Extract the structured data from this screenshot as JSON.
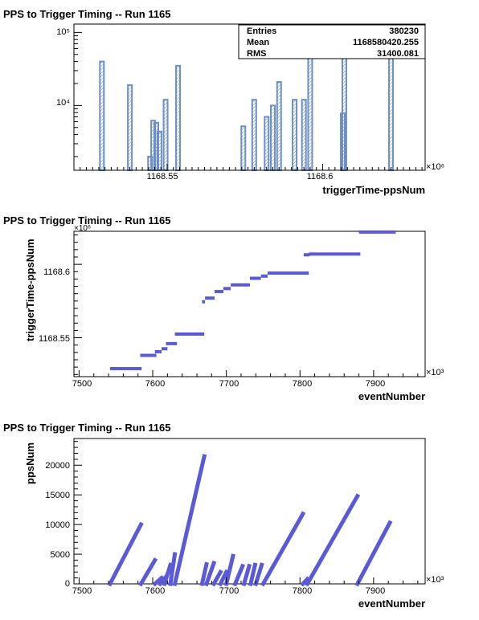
{
  "colors": {
    "hist_line": "#6d8fc4",
    "marker": "#5a5ad6",
    "axis": "#000000"
  },
  "chart_data": [
    {
      "type": "histogram",
      "title": "PPS to Trigger Timing -- Run 1165",
      "xlabel": "triggerTime-ppsNum",
      "ylabel": "",
      "x_tick_labels": [
        "1168.55",
        "1168.6"
      ],
      "x_multiplier": "×10⁶",
      "y_scale": "log",
      "y_tick_labels": [
        "10⁴",
        "10⁵"
      ],
      "xlim": [
        1168.52,
        1168.633
      ],
      "ylim": [
        1300,
        130000
      ],
      "grid": false,
      "stats": {
        "entries_label": "Entries",
        "entries": "380230",
        "mean_label": "Mean",
        "mean": "1168580420.255",
        "rms_label": "RMS",
        "rms": "31400.081"
      },
      "bins": [
        {
          "x": 1168.529,
          "y": 40000
        },
        {
          "x": 1168.538,
          "y": 19000
        },
        {
          "x": 1168.5445,
          "y": 2000
        },
        {
          "x": 1168.5455,
          "y": 6200
        },
        {
          "x": 1168.5465,
          "y": 5800
        },
        {
          "x": 1168.5475,
          "y": 4400
        },
        {
          "x": 1168.5495,
          "y": 12000
        },
        {
          "x": 1168.5535,
          "y": 35000
        },
        {
          "x": 1168.5745,
          "y": 5200
        },
        {
          "x": 1168.578,
          "y": 12000
        },
        {
          "x": 1168.582,
          "y": 7000
        },
        {
          "x": 1168.584,
          "y": 10000
        },
        {
          "x": 1168.586,
          "y": 21000
        },
        {
          "x": 1168.591,
          "y": 12000
        },
        {
          "x": 1168.594,
          "y": 12000
        },
        {
          "x": 1168.596,
          "y": 50000
        },
        {
          "x": 1168.6065,
          "y": 7800
        },
        {
          "x": 1168.607,
          "y": 60000
        },
        {
          "x": 1168.622,
          "y": 48000
        }
      ]
    },
    {
      "type": "scatter",
      "title": "PPS to Trigger Timing -- Run 1165",
      "xlabel": "eventNumber",
      "ylabel": "triggerTime-ppsNum",
      "x_tick_labels": [
        "7500",
        "7600",
        "7700",
        "7800",
        "7900"
      ],
      "x_multiplier": "×10³",
      "y_tick_labels": [
        "1168.55",
        "1168.6"
      ],
      "y_multiplier": "×10⁶",
      "xlim": [
        7493,
        7970
      ],
      "ylim": [
        1168.5235,
        1168.6225
      ],
      "grid": false,
      "segments": [
        {
          "x": [
            7542,
            7585
          ],
          "y": 1168.529
        },
        {
          "x": [
            7583,
            7605
          ],
          "y": 1168.538
        },
        {
          "x": [
            7603,
            7612
          ],
          "y": 1168.5405
        },
        {
          "x": [
            7612,
            7620
          ],
          "y": 1168.5425
        },
        {
          "x": [
            7618,
            7633
          ],
          "y": 1168.546
        },
        {
          "x": [
            7630,
            7670
          ],
          "y": 1168.5525
        },
        {
          "x": [
            7667,
            7671
          ],
          "y": 1168.5745
        },
        {
          "x": [
            7671,
            7684
          ],
          "y": 1168.577
        },
        {
          "x": [
            7684,
            7696
          ],
          "y": 1168.5815
        },
        {
          "x": [
            7696,
            7706
          ],
          "y": 1168.5835
        },
        {
          "x": [
            7706,
            7732
          ],
          "y": 1168.586
        },
        {
          "x": [
            7732,
            7747
          ],
          "y": 1168.5905
        },
        {
          "x": [
            7747,
            7756
          ],
          "y": 1168.592
        },
        {
          "x": [
            7756,
            7812
          ],
          "y": 1168.594
        },
        {
          "x": [
            7805,
            7813
          ],
          "y": 1168.6065
        },
        {
          "x": [
            7812,
            7882
          ],
          "y": 1168.607
        },
        {
          "x": [
            7880,
            7930
          ],
          "y": 1168.622
        }
      ]
    },
    {
      "type": "scatter",
      "title": "PPS to Trigger Timing -- Run 1165",
      "xlabel": "eventNumber",
      "ylabel": "ppsNum",
      "x_tick_labels": [
        "7500",
        "7600",
        "7700",
        "7800",
        "7900"
      ],
      "x_multiplier": "×10³",
      "y_tick_labels": [
        "0",
        "5000",
        "10000",
        "15000",
        "20000"
      ],
      "xlim": [
        7493,
        7970
      ],
      "ylim": [
        0,
        24500
      ],
      "grid": false,
      "segments": [
        {
          "x0": 7542,
          "y0": 0,
          "x1": 7584,
          "y1": 10000
        },
        {
          "x0": 7584,
          "y0": 0,
          "x1": 7603,
          "y1": 4000
        },
        {
          "x0": 7603,
          "y0": 0,
          "x1": 7612,
          "y1": 1000
        },
        {
          "x0": 7610,
          "y0": 0,
          "x1": 7618,
          "y1": 1200
        },
        {
          "x0": 7616,
          "y0": 0,
          "x1": 7624,
          "y1": 3200
        },
        {
          "x0": 7624,
          "y0": 0,
          "x1": 7630,
          "y1": 5000
        },
        {
          "x0": 7630,
          "y0": 0,
          "x1": 7670,
          "y1": 21500
        },
        {
          "x0": 7667,
          "y0": 0,
          "x1": 7673,
          "y1": 3300
        },
        {
          "x0": 7673,
          "y0": 0,
          "x1": 7683,
          "y1": 3500
        },
        {
          "x0": 7683,
          "y0": 0,
          "x1": 7692,
          "y1": 2000
        },
        {
          "x0": 7692,
          "y0": 0,
          "x1": 7700,
          "y1": 2000
        },
        {
          "x0": 7700,
          "y0": 0,
          "x1": 7709,
          "y1": 4700
        },
        {
          "x0": 7712,
          "y0": 0,
          "x1": 7722,
          "y1": 3000
        },
        {
          "x0": 7724,
          "y0": 0,
          "x1": 7731,
          "y1": 3000
        },
        {
          "x0": 7733,
          "y0": 0,
          "x1": 7739,
          "y1": 3200
        },
        {
          "x0": 7740,
          "y0": 0,
          "x1": 7748,
          "y1": 3200
        },
        {
          "x0": 7750,
          "y0": 0,
          "x1": 7804,
          "y1": 11800
        },
        {
          "x0": 7804,
          "y0": 0,
          "x1": 7810,
          "y1": 800
        },
        {
          "x0": 7810,
          "y0": 0,
          "x1": 7878,
          "y1": 14800
        },
        {
          "x0": 7878,
          "y0": 0,
          "x1": 7922,
          "y1": 10300
        }
      ]
    }
  ]
}
